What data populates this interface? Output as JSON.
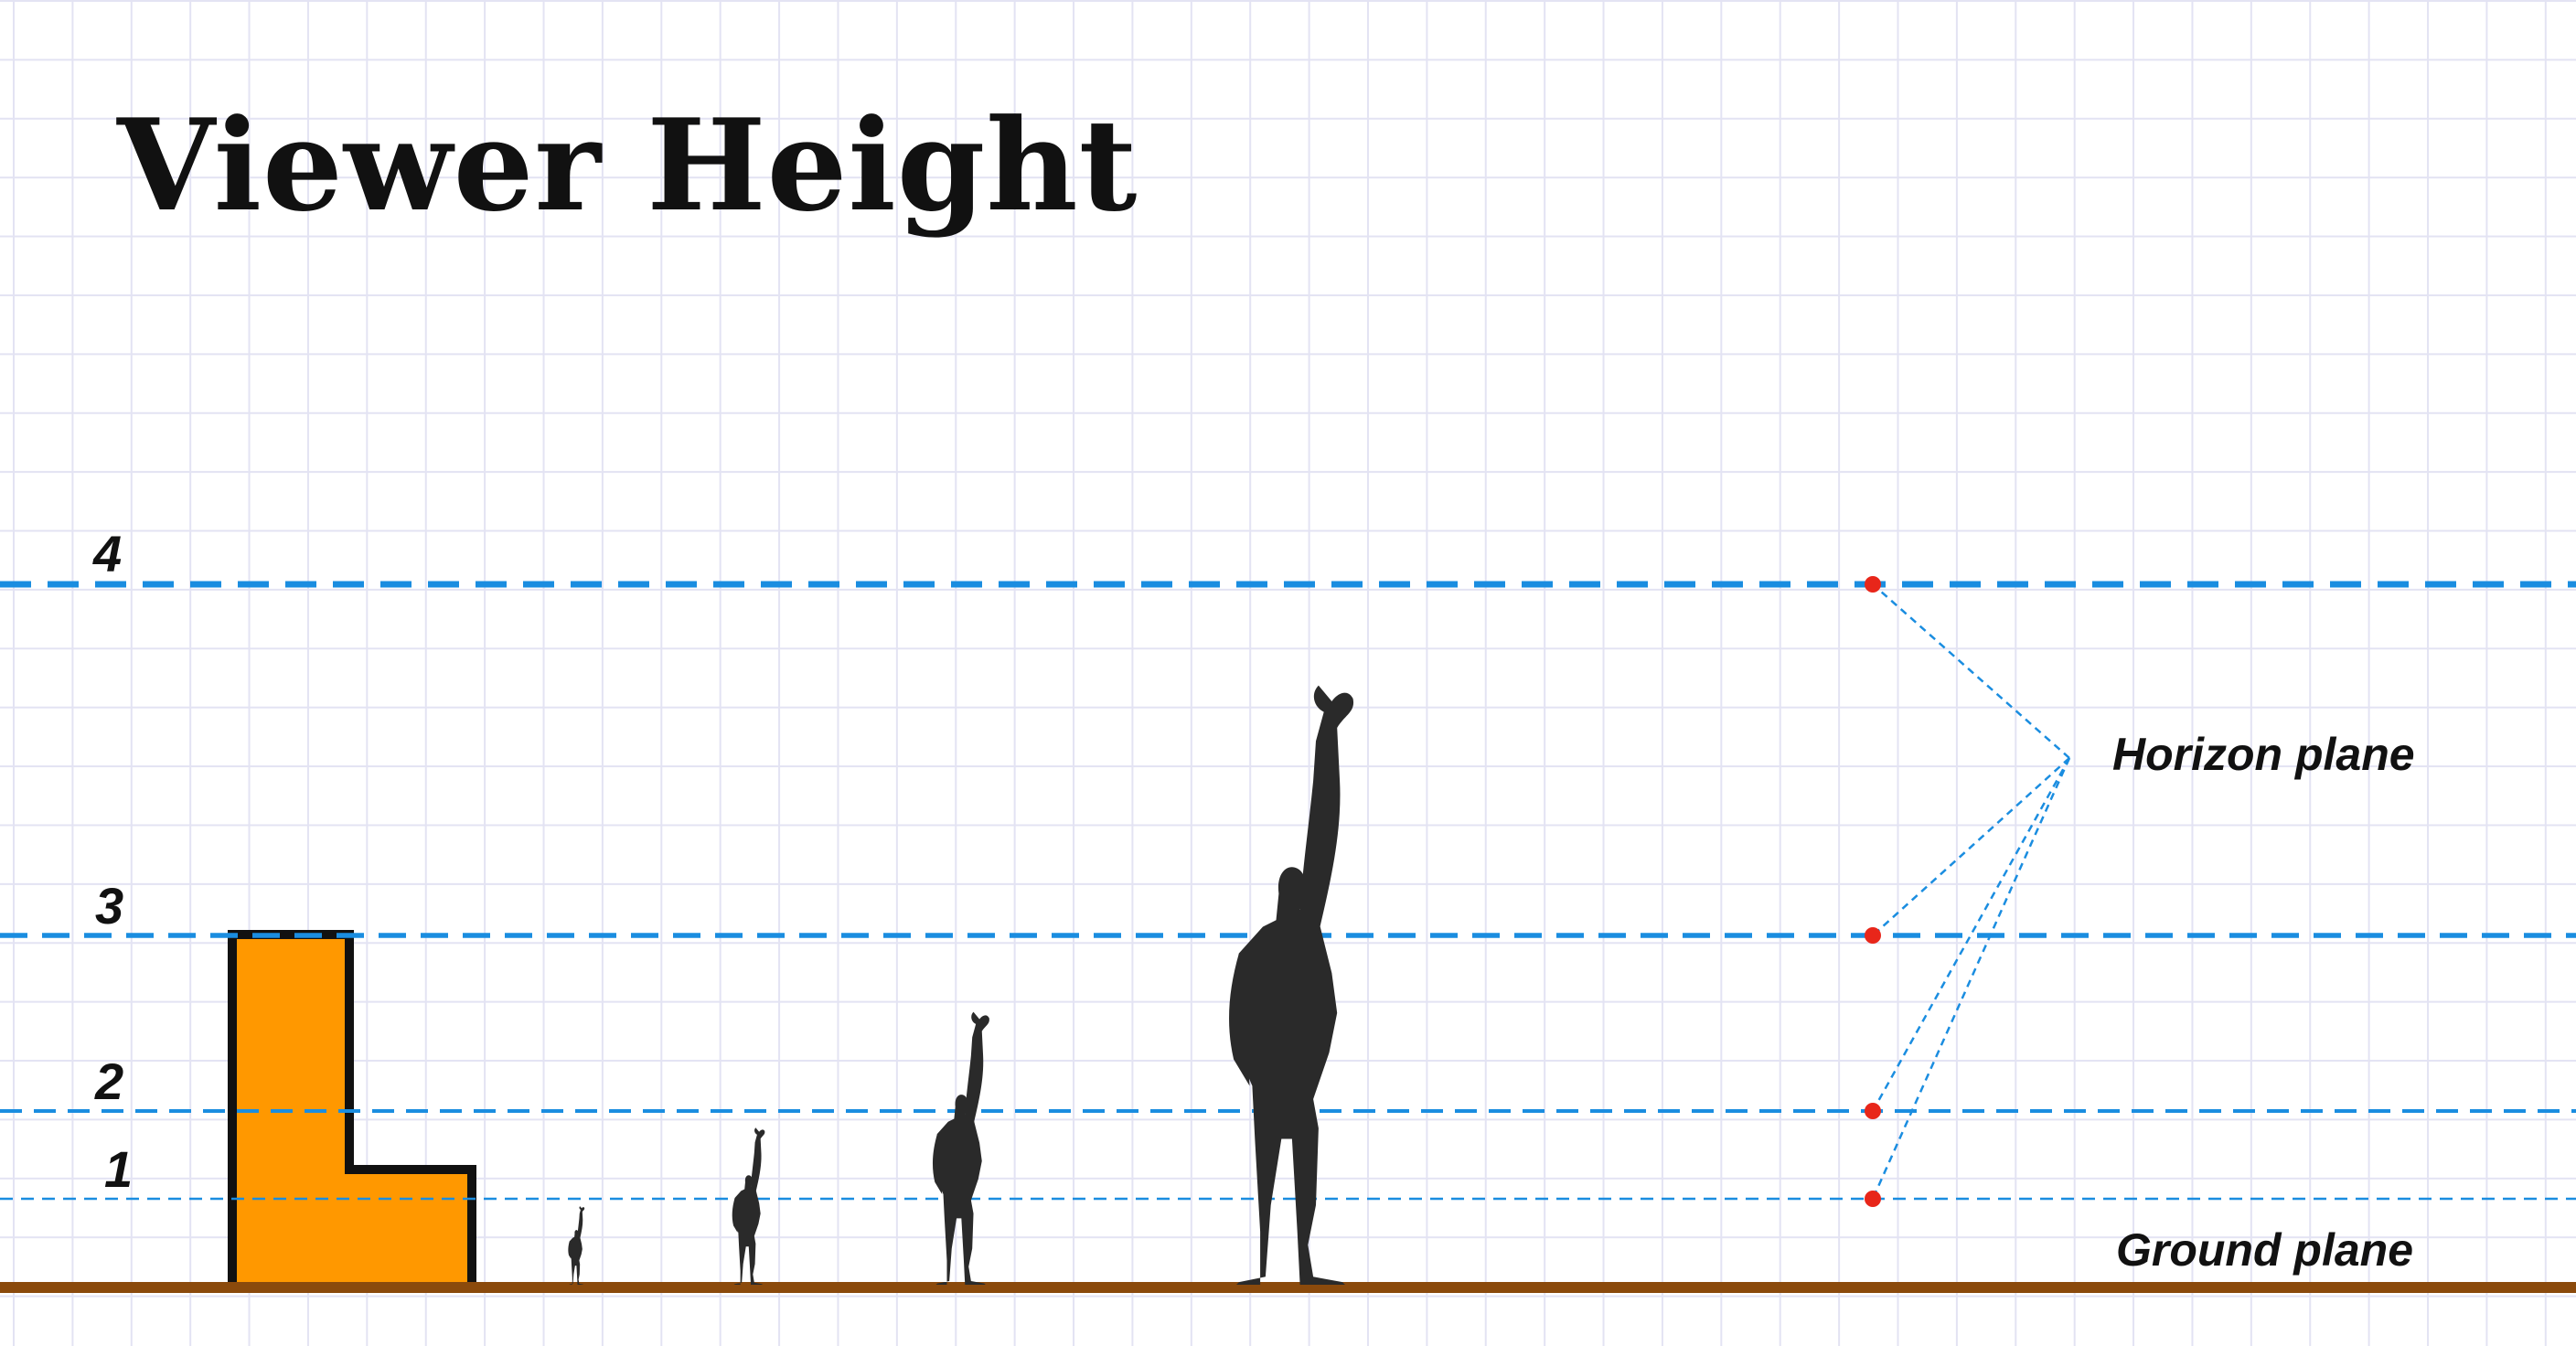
{
  "title": "Viewer Height",
  "levels": [
    {
      "label": "1"
    },
    {
      "label": "2"
    },
    {
      "label": "3"
    },
    {
      "label": "4"
    }
  ],
  "labels": {
    "horizon_plane": "Horizon plane",
    "ground_plane": "Ground plane"
  },
  "colors": {
    "horizon_line": "#1a8de0",
    "ground_line": "#8b4a0c",
    "block_fill": "#ff9800",
    "figure": "#2a2a2a",
    "marker": "#e8261a"
  },
  "figures": [
    {
      "name": "figure-smallest"
    },
    {
      "name": "figure-small"
    },
    {
      "name": "figure-medium"
    },
    {
      "name": "figure-large"
    }
  ]
}
